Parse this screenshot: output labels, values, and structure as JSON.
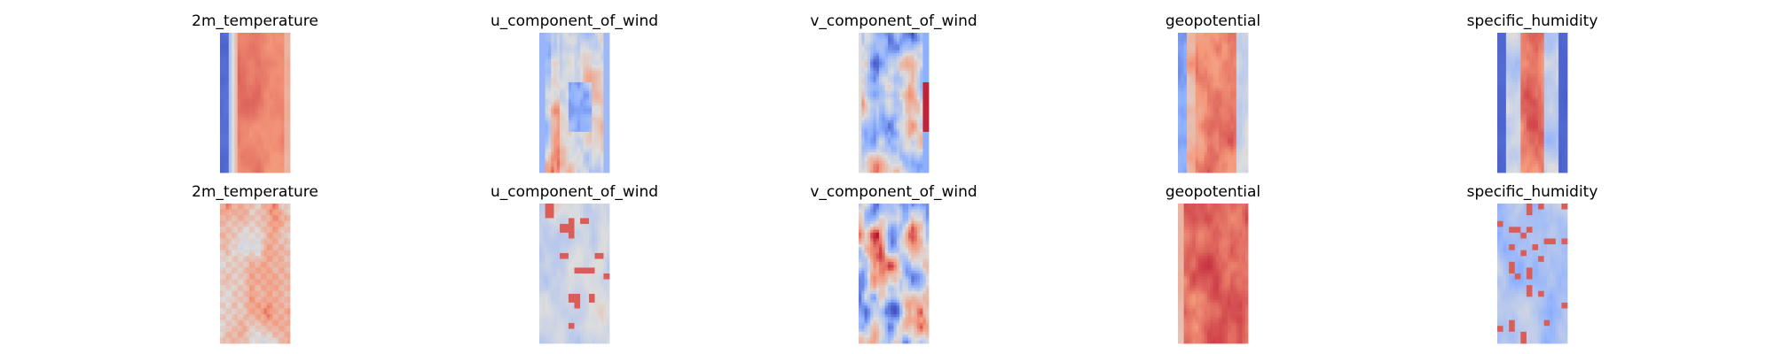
{
  "figure": {
    "background": "#ffffff",
    "colormap": [
      "#3b4cc0",
      "#b40426"
    ]
  },
  "chart_data": {
    "type": "heatmap",
    "colormap": "coolwarm",
    "axes_visible": false,
    "grid": false,
    "rows": 2,
    "cols": 5,
    "panels": [
      {
        "title": "2m_temperature",
        "row": 0,
        "col": 0,
        "pattern": "temp_row1"
      },
      {
        "title": "u_component_of_wind",
        "row": 0,
        "col": 1,
        "pattern": "uwind_row1"
      },
      {
        "title": "v_component_of_wind",
        "row": 0,
        "col": 2,
        "pattern": "vwind_row1"
      },
      {
        "title": "geopotential",
        "row": 0,
        "col": 3,
        "pattern": "geo_row1"
      },
      {
        "title": "specific_humidity",
        "row": 0,
        "col": 4,
        "pattern": "hum_row1"
      },
      {
        "title": "2m_temperature",
        "row": 1,
        "col": 0,
        "pattern": "temp_row2"
      },
      {
        "title": "u_component_of_wind",
        "row": 1,
        "col": 1,
        "pattern": "uwind_row2"
      },
      {
        "title": "v_component_of_wind",
        "row": 1,
        "col": 2,
        "pattern": "vwind_row2"
      },
      {
        "title": "geopotential",
        "row": 1,
        "col": 3,
        "pattern": "geo_row2"
      },
      {
        "title": "specific_humidity",
        "row": 1,
        "col": 4,
        "pattern": "hum_row2"
      }
    ]
  }
}
